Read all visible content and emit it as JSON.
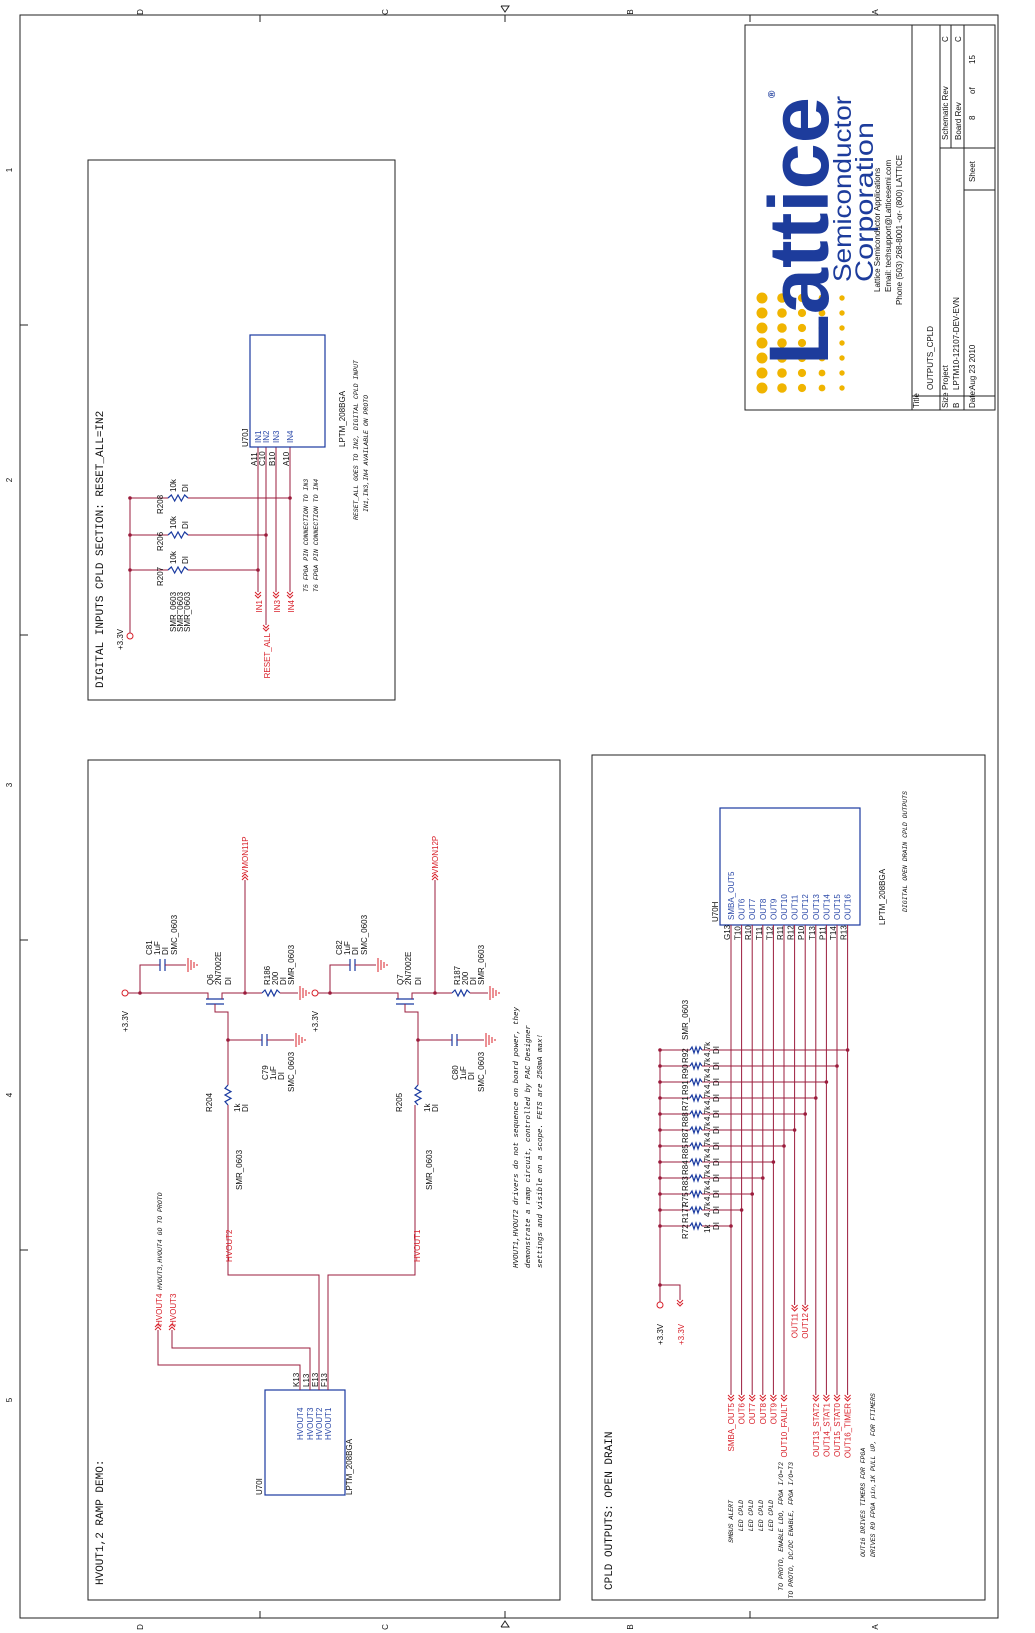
{
  "border": {
    "columns": [
      "D",
      "C",
      "B",
      "A"
    ],
    "rows": [
      "1",
      "2",
      "3",
      "4",
      "5"
    ]
  },
  "digital_inputs": {
    "title": "DIGITAL INPUTS CPLD SECTION: RESET_ALL=IN2",
    "supply": "+3.3V",
    "resistors": [
      {
        "ref": "R207",
        "value": "10k",
        "fit": "DI",
        "footprint": "SMR_0603"
      },
      {
        "ref": "R206",
        "value": "10k",
        "fit": "DI",
        "footprint": "SMR_0603"
      },
      {
        "ref": "R208",
        "value": "10k",
        "fit": "DI",
        "footprint": "SMR_0603"
      }
    ],
    "nets": [
      "IN1",
      "RESET_ALL",
      "IN3",
      "IN4"
    ],
    "pin_numbers": [
      "A11",
      "C10",
      "B10",
      "A10"
    ],
    "chip": {
      "ref": "U70J",
      "pins": [
        "IN1",
        "IN2",
        "IN3",
        "IN4"
      ],
      "part": "LPTM_208BGA"
    },
    "notes": [
      "T5 FPGA PIN CONNECTION TO IN3",
      "T6 FPGA PIN CONNECTION TO IN4",
      "RESET_ALL GOES TO IN2, DIGITAL CPLD INPUT",
      "IN1,IN3,IN4 AVAILABLE ON PROTO"
    ]
  },
  "hvout": {
    "title": "HVOUT1,2 RAMP DEMO:",
    "chip": {
      "ref": "U70I",
      "pins": [
        "HVOUT4",
        "HVOUT3",
        "HVOUT2",
        "HVOUT1"
      ],
      "pin_numbers": [
        "K13",
        "L13",
        "E13",
        "F13"
      ],
      "part": "LPTM_208BGA"
    },
    "nets": [
      "HVOUT4",
      "HVOUT3",
      "HVOUT2",
      "HVOUT1"
    ],
    "proto_note": "HVOUT3,HVOUT4 GO TO PROTO",
    "circuits": [
      {
        "supply": "+3.3V",
        "vmon": "VMON11P",
        "cap_in": {
          "ref": "C81",
          "value": "1uF",
          "fit": "DI",
          "footprint": "SMC_0603"
        },
        "fet": {
          "ref": "Q6",
          "part": "2N7002E",
          "fit": "DI"
        },
        "r_source": {
          "ref": "R186",
          "value": "200",
          "fit": "DI",
          "footprint": "SMR_0603"
        },
        "cap_out": {
          "ref": "C79",
          "value": "1uF",
          "fit": "DI",
          "footprint": "SMC_0603"
        },
        "r_gate": {
          "ref": "R204",
          "value": "1k",
          "fit": "DI",
          "footprint": "SMR_0603"
        }
      },
      {
        "supply": "+3.3V",
        "vmon": "VMON12P",
        "cap_in": {
          "ref": "C82",
          "value": "1uF",
          "fit": "DI",
          "footprint": "SMC_0603"
        },
        "fet": {
          "ref": "Q7",
          "part": "2N7002E",
          "fit": "DI"
        },
        "r_source": {
          "ref": "R187",
          "value": "200",
          "fit": "DI",
          "footprint": "SMR_0603"
        },
        "cap_out": {
          "ref": "C80",
          "value": "1uF",
          "fit": "DI",
          "footprint": "SMC_0603"
        },
        "r_gate": {
          "ref": "R205",
          "value": "1k",
          "fit": "DI",
          "footprint": "SMR_0603"
        }
      }
    ],
    "note": [
      "HVOUT1,HVOUT2 drivers do not sequence on board power, they",
      "demonstrate a ramp circuit, controlled by PAC Designer",
      "settings and visible on a scope. FETS are 250mA max!"
    ]
  },
  "cpld_outputs": {
    "title": "CPLD OUTPUTS: OPEN DRAIN",
    "chip": {
      "ref": "U70H",
      "pins": [
        "SMBA_OUT5",
        "OUT6",
        "OUT7",
        "OUT8",
        "OUT9",
        "OUT10",
        "OUT11",
        "OUT12",
        "OUT13",
        "OUT14",
        "OUT15",
        "OUT16"
      ],
      "pin_numbers": [
        "G13",
        "T10",
        "R10",
        "T11",
        "T12",
        "R11",
        "R12",
        "P10",
        "T13",
        "P11",
        "T14",
        "R13"
      ],
      "part": "LPTM_208BGA",
      "caption": "DIGITAL OPEN DRAIN CPLD OUTPUTS"
    },
    "supplies": [
      "+3.3V",
      "+3.3V"
    ],
    "footprint": "SMR_0603",
    "resistors": [
      {
        "ref": "R72",
        "value": "1k",
        "fit": "DI"
      },
      {
        "ref": "R177",
        "value": "4.7k",
        "fit": "DI"
      },
      {
        "ref": "R75",
        "value": "4.7k",
        "fit": "DI"
      },
      {
        "ref": "R83",
        "value": "4.7k",
        "fit": "DI"
      },
      {
        "ref": "R84",
        "value": "4.7k",
        "fit": "DI"
      },
      {
        "ref": "R85",
        "value": "4.7k",
        "fit": "DI"
      },
      {
        "ref": "R87",
        "value": "4.7k",
        "fit": "DI"
      },
      {
        "ref": "R88",
        "value": "4.7k",
        "fit": "DI"
      },
      {
        "ref": "R71",
        "value": "4.7k",
        "fit": "DI"
      },
      {
        "ref": "R91",
        "value": "4.7k",
        "fit": "DI"
      },
      {
        "ref": "R90",
        "value": "4.7k",
        "fit": "DI"
      },
      {
        "ref": "R92",
        "value": "4.7k",
        "fit": "DI"
      }
    ],
    "nets": [
      "SMBA_OUT5",
      "OUT6",
      "OUT7",
      "OUT8",
      "OUT9",
      "OUT10_FAULT",
      "OUT11",
      "OUT12",
      "OUT13_STAT2",
      "OUT14_STAT1",
      "OUT15_STAT0",
      "OUT16_TIMER"
    ],
    "annotations": [
      "SMBUS ALERT",
      "LED CPLD",
      "LED CPLD",
      "LED CPLD",
      "LED CPLD",
      "TO PROTO, ENABLE LDO, FPGA I/O=T2",
      "TO PROTO, DC/DC ENABLE, FPGA I/O=T3",
      "OUT16 DRIVES TIMERS FOR FPGA",
      "DRIVES R9 FPGA pin,1K PULL UP, FOR FTIMERS"
    ]
  },
  "title_block": {
    "logo": "Lattice",
    "registered": "®",
    "logo_line1": "Semiconductor",
    "logo_line2": "Corporation",
    "company": [
      "Lattice Semiconductor Applications",
      "Email: techsupport@Latticesemi.com",
      "Phone (503) 268-8001 -or- (800) LATTICE"
    ],
    "title_label": "Title",
    "title": "OUTPUTS_CPLD",
    "size_label": "Size",
    "size": "B",
    "project_label": "Project",
    "project": "LPTM10-12107-DEV-EVN",
    "date_label": "Date:",
    "date": "Aug 23 2010",
    "sheet_label": "Sheet",
    "sheet": "8",
    "of": "of",
    "sheet_total": "15",
    "schematic_rev_label": "Schematic Rev",
    "schematic_rev": "C",
    "board_rev_label": "Board Rev",
    "board_rev": "C"
  }
}
